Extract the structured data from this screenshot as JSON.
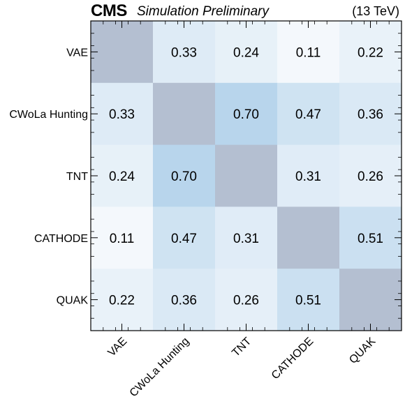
{
  "header": {
    "experiment": "CMS",
    "status": "Simulation Preliminary",
    "energy": "(13 TeV)"
  },
  "chart_data": {
    "type": "heatmap",
    "x_categories": [
      "VAE",
      "CWoLa Hunting",
      "TNT",
      "CATHODE",
      "QUAK"
    ],
    "y_categories": [
      "VAE",
      "CWoLa Hunting",
      "TNT",
      "CATHODE",
      "QUAK"
    ],
    "values": [
      [
        null,
        0.33,
        0.24,
        0.11,
        0.22
      ],
      [
        0.33,
        null,
        0.7,
        0.47,
        0.36
      ],
      [
        0.24,
        0.7,
        null,
        0.31,
        0.26
      ],
      [
        0.11,
        0.47,
        0.31,
        null,
        0.51
      ],
      [
        0.22,
        0.36,
        0.26,
        0.51,
        null
      ]
    ],
    "value_format": "2 decimals",
    "colormap": {
      "low": "#ffffff",
      "high": "#b8d5ec",
      "diagonal": "#b4bfd1"
    },
    "grid": false
  }
}
